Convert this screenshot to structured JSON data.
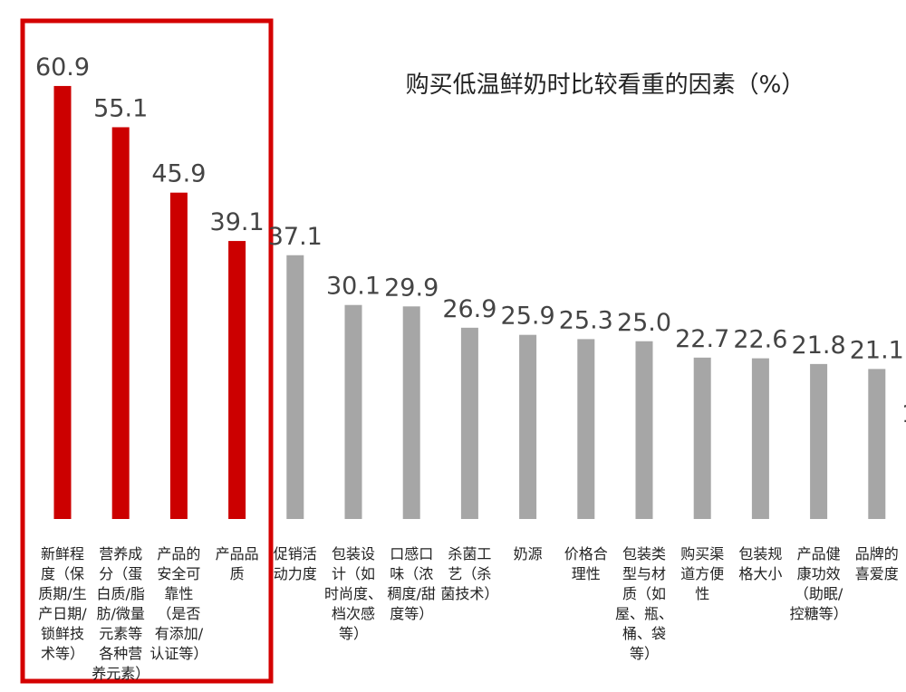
{
  "chart_data": {
    "type": "bar",
    "title": "购买低温鲜奶时比较看重的因素（%）",
    "xlabel": "",
    "ylabel": "",
    "ylim": [
      0,
      70
    ],
    "grid": false,
    "highlight_count": 4,
    "colors": {
      "highlight": "#cc0000",
      "normal": "#a6a6a6",
      "frame": "#d40000"
    },
    "categories": [
      "新鲜程度（保质期/生产日期/锁鲜技术等）",
      "营养成分（蛋白质/脂肪/微量元素等各种营养元素）",
      "产品的安全可靠性（是否有添加/认证等）",
      "产品品质",
      "促销活动力度",
      "包装设计（如时尚度、档次感等）",
      "口感口味（浓稠度/甜度等）",
      "杀菌工艺（杀菌技术）",
      "奶源",
      "价格合理性",
      "包装类型与材质（如屋、瓶、桶、袋等）",
      "购买渠道方便性",
      "包装规格大小",
      "产品健康功效（助眠/控糖等）",
      "品牌的喜爱度"
    ],
    "category_lines": [
      [
        "新鲜程",
        "度（保",
        "质期/生",
        "产日期/",
        "锁鲜技",
        "术等）"
      ],
      [
        "营养成",
        "分（蛋",
        "白质/脂",
        "肪/微量",
        "元素等",
        "各种营",
        "养元素）"
      ],
      [
        "产品的",
        "安全可",
        "靠性",
        "（是否",
        "有添加/",
        "认证等）"
      ],
      [
        "产品品",
        "质"
      ],
      [
        "促销活",
        "动力度"
      ],
      [
        "包装设",
        "计（如",
        "时尚度、",
        "档次感",
        "等）"
      ],
      [
        "口感口",
        "味（浓",
        "稠度/甜",
        "度等）"
      ],
      [
        "杀菌工",
        "艺（杀",
        "菌技术）"
      ],
      [
        "奶源"
      ],
      [
        "价格合",
        "理性"
      ],
      [
        "包装类",
        "型与材",
        "质（如",
        "屋、瓶、",
        "桶、袋",
        "等）"
      ],
      [
        "购买渠",
        "道方便",
        "性"
      ],
      [
        "包装规",
        "格大小"
      ],
      [
        "产品健",
        "康功效",
        "（助眠/",
        "控糖等）"
      ],
      [
        "品牌的",
        "喜爱度"
      ]
    ],
    "values": [
      60.9,
      55.1,
      45.9,
      39.1,
      37.1,
      30.1,
      29.9,
      26.9,
      25.9,
      25.3,
      25.0,
      22.7,
      22.6,
      21.8,
      21.1
    ],
    "value_labels": [
      "60.9",
      "55.1",
      "45.9",
      "39.1",
      "37.1",
      "30.1",
      "29.9",
      "26.9",
      "25.9",
      "25.3",
      "25.0",
      "22.7",
      "22.6",
      "21.8",
      "21.1"
    ],
    "cutoff_glyph": "1"
  }
}
